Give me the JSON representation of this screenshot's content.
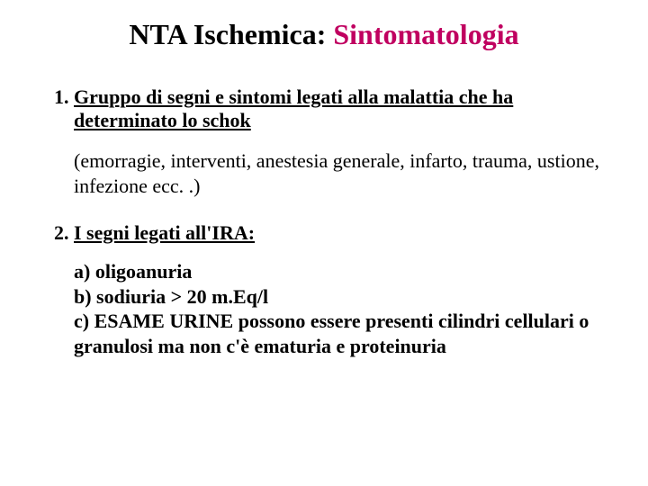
{
  "title": {
    "part1": "NTA Ischemica: ",
    "part2": "Sintomatologia",
    "fontsize": 32,
    "color1": "#000000",
    "color2": "#c00060"
  },
  "body_fontsize": 22,
  "items": {
    "one": {
      "heading": "Gruppo di segni e sintomi legati alla malattia che ha determinato lo schok",
      "paren": "(emorragie, interventi, anestesia generale, infarto, trauma, ustione, infezione ecc. .)"
    },
    "two": {
      "heading": "I segni legati all'IRA:",
      "a": "a) oligoanuria",
      "b": "b) sodiuria > 20 m.Eq/l",
      "c": "c)  ESAME URINE possono essere presenti cilindri cellulari o granulosi ma non c'è ematuria e proteinuria"
    }
  },
  "colors": {
    "background": "#ffffff",
    "text": "#000000"
  }
}
